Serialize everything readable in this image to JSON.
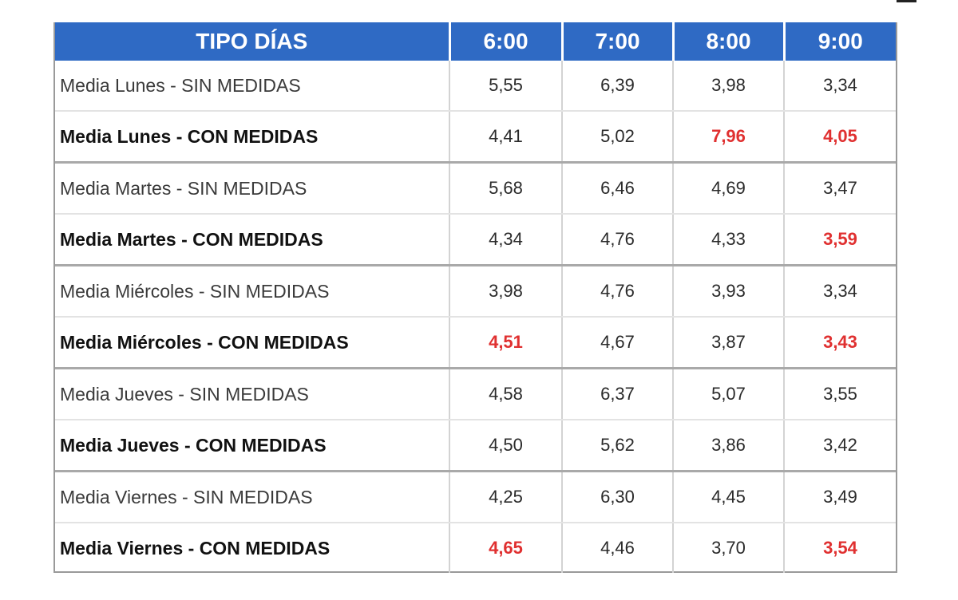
{
  "header": {
    "tipo_label": "TIPO DÍAS",
    "times": [
      "6:00",
      "7:00",
      "8:00",
      "9:00"
    ]
  },
  "highlight_color": "#e03030",
  "header_color": "#2f6ac4",
  "rows": [
    {
      "label": "Media Lunes - SIN MEDIDAS",
      "values": [
        "5,55",
        "6,39",
        "3,98",
        "3,34"
      ],
      "highlight": [
        false,
        false,
        false,
        false
      ]
    },
    {
      "label": "Media Lunes - CON MEDIDAS",
      "values": [
        "4,41",
        "5,02",
        "7,96",
        "4,05"
      ],
      "highlight": [
        false,
        false,
        true,
        true
      ]
    },
    {
      "label": "Media Martes - SIN MEDIDAS",
      "values": [
        "5,68",
        "6,46",
        "4,69",
        "3,47"
      ],
      "highlight": [
        false,
        false,
        false,
        false
      ]
    },
    {
      "label": "Media Martes - CON MEDIDAS",
      "values": [
        "4,34",
        "4,76",
        "4,33",
        "3,59"
      ],
      "highlight": [
        false,
        false,
        false,
        true
      ]
    },
    {
      "label": "Media Miércoles - SIN MEDIDAS",
      "values": [
        "3,98",
        "4,76",
        "3,93",
        "3,34"
      ],
      "highlight": [
        false,
        false,
        false,
        false
      ]
    },
    {
      "label": "Media Miércoles - CON MEDIDAS",
      "values": [
        "4,51",
        "4,67",
        "3,87",
        "3,43"
      ],
      "highlight": [
        true,
        false,
        false,
        true
      ]
    },
    {
      "label": "Media Jueves - SIN MEDIDAS",
      "values": [
        "4,58",
        "6,37",
        "5,07",
        "3,55"
      ],
      "highlight": [
        false,
        false,
        false,
        false
      ]
    },
    {
      "label": "Media Jueves - CON MEDIDAS",
      "values": [
        "4,50",
        "5,62",
        "3,86",
        "3,42"
      ],
      "highlight": [
        false,
        false,
        false,
        false
      ]
    },
    {
      "label": "Media Viernes - SIN MEDIDAS",
      "values": [
        "4,25",
        "6,30",
        "4,45",
        "3,49"
      ],
      "highlight": [
        false,
        false,
        false,
        false
      ]
    },
    {
      "label": "Media Viernes - CON MEDIDAS",
      "values": [
        "4,65",
        "4,46",
        "3,70",
        "3,54"
      ],
      "highlight": [
        true,
        false,
        false,
        true
      ]
    }
  ]
}
